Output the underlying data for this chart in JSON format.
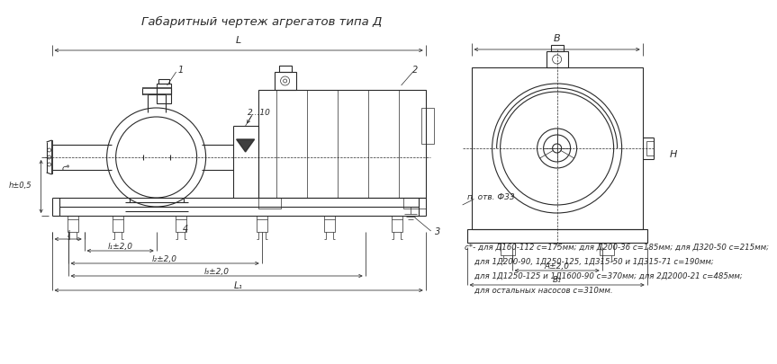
{
  "title": "Габаритный чертеж агрегатов типа Д",
  "title_fontsize": 9.5,
  "bg_color": "#ffffff",
  "line_color": "#2a2a2a",
  "footnote_lines": [
    "с*- для Д160-112 с=175мм; для Д200-36 с=185мм; для Д320-50 с=215мм;",
    "    для 1Д200-90, 1Д250-125, 1Д315-50 и 1Д315-71 с=190мм;",
    "    для 1Д1250-125 и 1Д1600-90 с=370мм; для 2Д2000-21 с=485мм;",
    "    для остальных насосов с=310мм."
  ],
  "footnote_fontsize": 6.2,
  "lw_main": 0.8,
  "lw_thin": 0.5,
  "lw_dim": 0.55
}
